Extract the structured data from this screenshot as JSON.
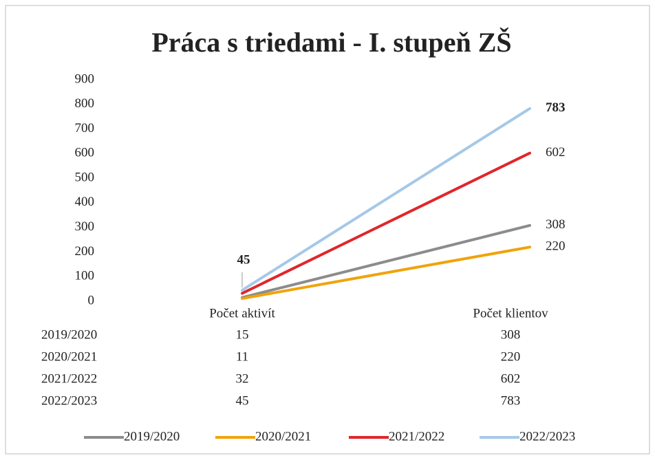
{
  "chart_data": {
    "type": "line",
    "title": "Práca s triedami - I. stupeň ZŠ",
    "categories": [
      "Počet aktivít",
      "Počet klientov"
    ],
    "series": [
      {
        "name": "2019/2020",
        "color": "#8c8c8c",
        "values": [
          15,
          308
        ]
      },
      {
        "name": "2020/2021",
        "color": "#f0a30a",
        "values": [
          11,
          220
        ]
      },
      {
        "name": "2021/2022",
        "color": "#e0262b",
        "values": [
          32,
          602
        ]
      },
      {
        "name": "2022/2023",
        "color": "#a6c8e8",
        "values": [
          45,
          783
        ]
      }
    ],
    "ylim": [
      0,
      900
    ],
    "yticks": [
      0,
      100,
      200,
      300,
      400,
      500,
      600,
      700,
      800,
      900
    ],
    "grid": false,
    "legend": "bottom"
  }
}
